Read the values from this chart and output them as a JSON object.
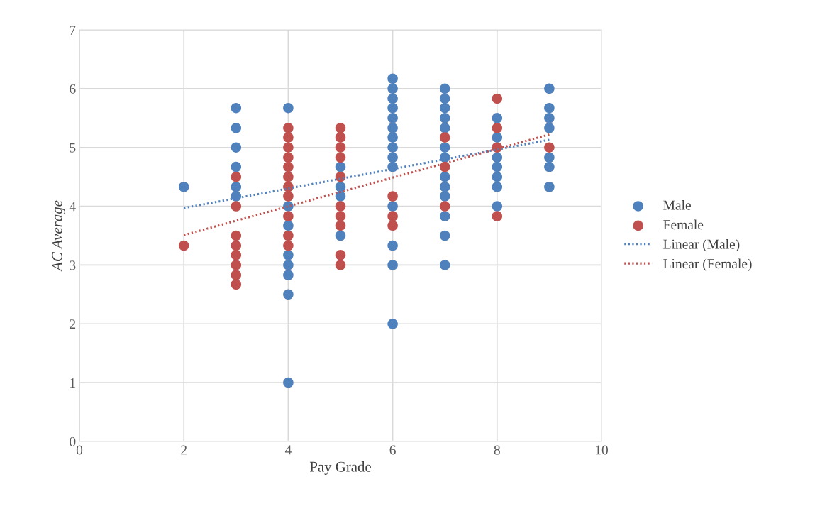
{
  "chart_data": {
    "type": "scatter",
    "xlabel": "Pay Grade",
    "ylabel": "AC Average",
    "xlim": [
      0,
      10
    ],
    "ylim": [
      0,
      7
    ],
    "xticks": [
      0,
      2,
      4,
      6,
      8,
      10
    ],
    "yticks": [
      0,
      1,
      2,
      3,
      4,
      5,
      6,
      7
    ],
    "grid": true,
    "legend": "right",
    "series": [
      {
        "name": "Male",
        "color": "#4f81bd",
        "marker": "circle",
        "x": [
          2,
          3,
          3,
          3,
          3,
          3,
          3,
          4,
          4,
          4,
          4,
          4,
          4,
          4,
          4,
          5,
          5,
          5,
          5,
          6,
          6,
          6,
          6,
          6,
          6,
          6,
          6,
          6,
          6,
          6,
          6,
          6,
          6,
          7,
          7,
          7,
          7,
          7,
          7,
          7,
          7,
          7,
          7,
          7,
          7,
          7,
          8,
          8,
          8,
          8,
          8,
          8,
          8,
          8,
          9,
          9,
          9,
          9,
          9,
          9,
          9
        ],
        "values": [
          4.33,
          5.67,
          5.33,
          5.0,
          4.67,
          4.33,
          4.17,
          5.67,
          4.0,
          3.67,
          3.17,
          3.0,
          2.83,
          2.5,
          1.0,
          4.67,
          4.33,
          4.17,
          3.5,
          6.17,
          6.0,
          5.83,
          5.67,
          5.5,
          5.33,
          5.17,
          5.0,
          4.83,
          4.67,
          4.0,
          3.33,
          3.0,
          2.0,
          6.0,
          5.83,
          5.67,
          5.5,
          5.33,
          5.0,
          4.83,
          4.5,
          4.33,
          4.17,
          3.83,
          3.5,
          3.0,
          5.5,
          5.17,
          5.0,
          4.83,
          4.67,
          4.5,
          4.33,
          4.0,
          6.0,
          5.67,
          5.5,
          5.33,
          4.83,
          4.67,
          4.33
        ]
      },
      {
        "name": "Female",
        "color": "#c0504d",
        "marker": "circle",
        "x": [
          2,
          3,
          3,
          3,
          3,
          3,
          3,
          3,
          3,
          4,
          4,
          4,
          4,
          4,
          4,
          4,
          4,
          4,
          4,
          4,
          5,
          5,
          5,
          5,
          5,
          5,
          5,
          5,
          5,
          5,
          6,
          6,
          6,
          7,
          7,
          7,
          8,
          8,
          8,
          8,
          9
        ],
        "values": [
          3.33,
          4.5,
          4.0,
          3.5,
          3.33,
          3.17,
          3.0,
          2.83,
          2.67,
          5.33,
          5.17,
          5.0,
          4.83,
          4.67,
          4.5,
          4.33,
          4.17,
          3.83,
          3.5,
          3.33,
          5.33,
          5.17,
          5.0,
          4.83,
          4.5,
          4.0,
          3.83,
          3.67,
          3.17,
          3.0,
          4.17,
          3.83,
          3.67,
          5.17,
          4.67,
          4.0,
          5.83,
          5.33,
          5.0,
          3.83,
          5.0
        ]
      },
      {
        "name": "Linear (Male)",
        "type": "line",
        "marker": "none",
        "line_style": "dotted",
        "color": "#4f81bd",
        "x": [
          2,
          9
        ],
        "values": [
          3.97,
          5.13
        ]
      },
      {
        "name": "Linear (Female)",
        "type": "line",
        "marker": "none",
        "line_style": "dotted",
        "color": "#c0504d",
        "x": [
          2,
          9
        ],
        "values": [
          3.51,
          5.22
        ]
      }
    ]
  }
}
